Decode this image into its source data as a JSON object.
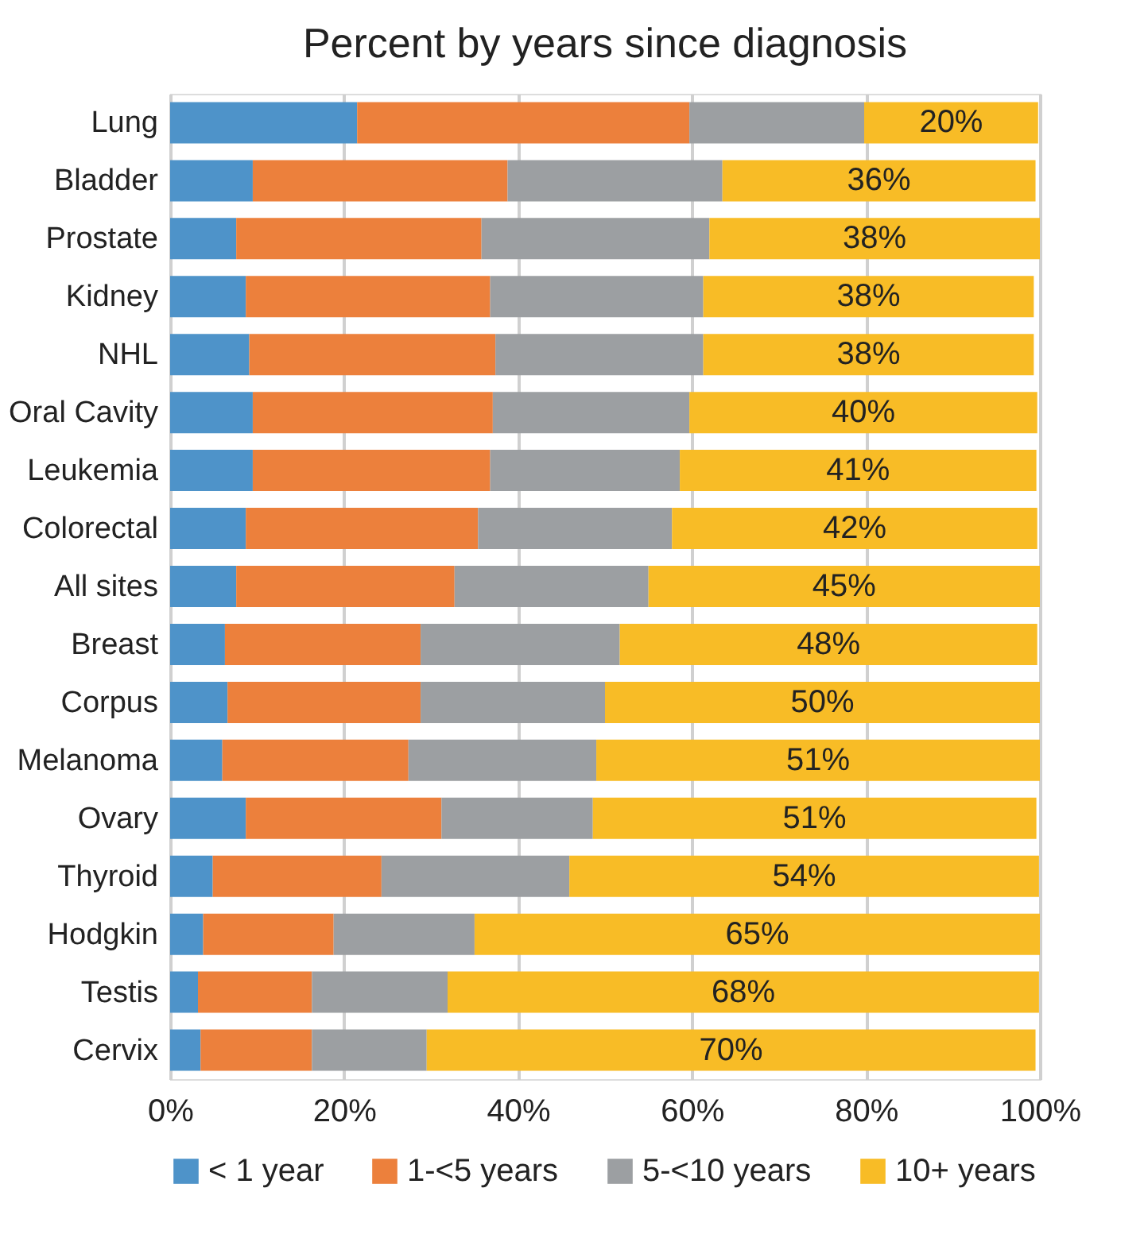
{
  "chart_data": {
    "type": "bar",
    "title": "Percent by years since diagnosis",
    "orientation": "horizontal",
    "stacked": true,
    "categories": [
      "Lung",
      "Bladder",
      "Prostate",
      "Kidney",
      "NHL",
      "Oral Cavity",
      "Leukemia",
      "Colorectal",
      "All sites",
      "Breast",
      "Corpus",
      "Melanoma",
      "Ovary",
      "Thyroid",
      "Hodgkin",
      "Testis",
      "Cervix"
    ],
    "series": [
      {
        "name": "< 1 year",
        "color": "#4e93c9",
        "values": [
          21.5,
          9.5,
          7.6,
          8.7,
          9.1,
          9.5,
          9.5,
          8.7,
          7.6,
          6.3,
          6.6,
          6.0,
          8.7,
          4.9,
          3.8,
          3.2,
          3.5
        ]
      },
      {
        "name": "1-<5 years",
        "color": "#ec803c",
        "values": [
          38.2,
          29.3,
          28.2,
          28.1,
          28.3,
          27.6,
          27.3,
          26.7,
          25.1,
          22.5,
          22.2,
          21.4,
          22.5,
          19.4,
          15.0,
          13.1,
          12.8
        ]
      },
      {
        "name": "5-<10 years",
        "color": "#9c9fa2",
        "values": [
          20.1,
          24.7,
          26.2,
          24.5,
          23.9,
          22.6,
          21.8,
          22.3,
          22.3,
          22.9,
          21.2,
          21.6,
          17.4,
          21.6,
          16.2,
          15.6,
          13.2
        ]
      },
      {
        "name": "10+ years",
        "color": "#f8bc26",
        "values": [
          20,
          36,
          38,
          38,
          38,
          40,
          41,
          42,
          45,
          48,
          50,
          51,
          51,
          54,
          65,
          68,
          70
        ],
        "value_labels": [
          "20%",
          "36%",
          "38%",
          "38%",
          "38%",
          "40%",
          "41%",
          "42%",
          "45%",
          "48%",
          "50%",
          "51%",
          "51%",
          "54%",
          "65%",
          "68%",
          "70%"
        ]
      }
    ],
    "xlim": [
      0,
      100
    ],
    "xticks": [
      {
        "value": 0,
        "label": "0%"
      },
      {
        "value": 20,
        "label": "20%"
      },
      {
        "value": 40,
        "label": "40%"
      },
      {
        "value": 60,
        "label": "60%"
      },
      {
        "value": 80,
        "label": "80%"
      },
      {
        "value": 100,
        "label": "100%"
      }
    ],
    "grid": "x",
    "legend": "bottom"
  }
}
